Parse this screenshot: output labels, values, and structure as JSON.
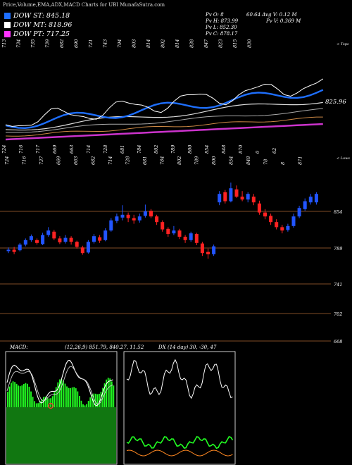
{
  "title": "Price,Volume,EMA,ADX,MACD Charts for UBI MunafaSutra.com",
  "legend": [
    {
      "label": "DOW ST: 845.18",
      "color": "#1e6fff"
    },
    {
      "label": "DOW MT: 818.96",
      "color": "#ffffff"
    },
    {
      "label": "DOW PT: 717.25",
      "color": "#ff33ff"
    }
  ],
  "ohlc": {
    "open": "Pv  O: 8",
    "open_right": "60.64  Avg V: 0.12  M",
    "high": "Pv  H: 873.99",
    "high_right": "Pv  V: 0.369 M",
    "low": "Pv  L: 852.30",
    "close": "Pv  C: 878.17"
  },
  "macd_header": "MACD:",
  "macd_values": "(12,26,9) 851.79, 840.27, 11.52",
  "adx_header": "DX",
  "adx_values": "(14 day) 30, -30, 47",
  "top_label": "< Tops",
  "low_label": "< Lows",
  "current_price_label": "825.96",
  "chart_data": [
    {
      "type": "line",
      "name": "price-ema-overview",
      "top_labels": [
        "713",
        "734",
        "735",
        "739",
        "682",
        "690",
        "721",
        "743",
        "794",
        "803",
        "814",
        "802",
        "814",
        "838",
        "847",
        "823",
        "815",
        "830"
      ],
      "bottom_labels": [
        "724",
        "716",
        "717",
        "669",
        "663",
        "714",
        "728",
        "681",
        "784",
        "802",
        "789",
        "800",
        "854",
        "848",
        "870",
        "0",
        "62"
      ],
      "current_price": 825.96
    },
    {
      "type": "candlestick",
      "name": "price-candles",
      "price_levels": [
        854,
        789,
        741,
        702,
        668
      ],
      "top_labels": [
        "724",
        "716",
        "737",
        "669",
        "663",
        "682",
        "714",
        "728",
        "681",
        "784",
        "802",
        "789",
        "800",
        "854",
        "848",
        "78",
        "8",
        "871"
      ],
      "candles": [
        {
          "o": 784,
          "c": 786,
          "h": 790,
          "l": 780,
          "up": true
        },
        {
          "o": 786,
          "c": 782,
          "h": 791,
          "l": 778,
          "up": false
        },
        {
          "o": 785,
          "c": 795,
          "h": 798,
          "l": 783,
          "up": true
        },
        {
          "o": 795,
          "c": 803,
          "h": 806,
          "l": 792,
          "up": true
        },
        {
          "o": 803,
          "c": 810,
          "h": 813,
          "l": 800,
          "up": true
        },
        {
          "o": 803,
          "c": 798,
          "h": 806,
          "l": 795,
          "up": false
        },
        {
          "o": 796,
          "c": 812,
          "h": 816,
          "l": 794,
          "up": true
        },
        {
          "o": 812,
          "c": 820,
          "h": 826,
          "l": 809,
          "up": true
        },
        {
          "o": 818,
          "c": 806,
          "h": 821,
          "l": 803,
          "up": false
        },
        {
          "o": 806,
          "c": 799,
          "h": 810,
          "l": 796,
          "up": false
        },
        {
          "o": 800,
          "c": 807,
          "h": 812,
          "l": 797,
          "up": true
        },
        {
          "o": 807,
          "c": 800,
          "h": 810,
          "l": 795,
          "up": false
        },
        {
          "o": 800,
          "c": 791,
          "h": 802,
          "l": 788,
          "up": false
        },
        {
          "o": 790,
          "c": 780,
          "h": 793,
          "l": 777,
          "up": false
        },
        {
          "o": 781,
          "c": 800,
          "h": 803,
          "l": 779,
          "up": true
        },
        {
          "o": 800,
          "c": 810,
          "h": 814,
          "l": 797,
          "up": true
        },
        {
          "o": 808,
          "c": 802,
          "h": 812,
          "l": 798,
          "up": false
        },
        {
          "o": 803,
          "c": 820,
          "h": 824,
          "l": 801,
          "up": true
        },
        {
          "o": 820,
          "c": 838,
          "h": 842,
          "l": 818,
          "up": true
        },
        {
          "o": 837,
          "c": 845,
          "h": 850,
          "l": 833,
          "up": true
        },
        {
          "o": 843,
          "c": 848,
          "h": 865,
          "l": 838,
          "up": true
        },
        {
          "o": 848,
          "c": 842,
          "h": 852,
          "l": 835,
          "up": false
        },
        {
          "o": 842,
          "c": 838,
          "h": 848,
          "l": 832,
          "up": false
        },
        {
          "o": 838,
          "c": 845,
          "h": 850,
          "l": 834,
          "up": true
        },
        {
          "o": 846,
          "c": 854,
          "h": 866,
          "l": 843,
          "up": true
        },
        {
          "o": 855,
          "c": 845,
          "h": 858,
          "l": 842,
          "up": false
        },
        {
          "o": 845,
          "c": 835,
          "h": 848,
          "l": 830,
          "up": false
        },
        {
          "o": 835,
          "c": 822,
          "h": 838,
          "l": 818,
          "up": false
        },
        {
          "o": 823,
          "c": 814,
          "h": 826,
          "l": 809,
          "up": false
        },
        {
          "o": 815,
          "c": 820,
          "h": 828,
          "l": 812,
          "up": true
        },
        {
          "o": 820,
          "c": 809,
          "h": 823,
          "l": 805,
          "up": false
        },
        {
          "o": 809,
          "c": 803,
          "h": 812,
          "l": 798,
          "up": false
        },
        {
          "o": 803,
          "c": 815,
          "h": 818,
          "l": 800,
          "up": true
        },
        {
          "o": 814,
          "c": 798,
          "h": 816,
          "l": 794,
          "up": false
        },
        {
          "o": 797,
          "c": 780,
          "h": 800,
          "l": 775,
          "up": false
        },
        {
          "o": 782,
          "c": 778,
          "h": 788,
          "l": 770,
          "up": false
        },
        {
          "o": 778,
          "c": 792,
          "h": 795,
          "l": 775,
          "up": true
        },
        {
          "o": 870,
          "c": 885,
          "h": 890,
          "l": 865,
          "up": true
        },
        {
          "o": 888,
          "c": 872,
          "h": 892,
          "l": 868,
          "up": false
        },
        {
          "o": 872,
          "c": 895,
          "h": 905,
          "l": 870,
          "up": true
        },
        {
          "o": 893,
          "c": 880,
          "h": 900,
          "l": 878,
          "up": false
        },
        {
          "o": 880,
          "c": 875,
          "h": 890,
          "l": 872,
          "up": false
        },
        {
          "o": 875,
          "c": 885,
          "h": 888,
          "l": 870,
          "up": true
        },
        {
          "o": 880,
          "c": 870,
          "h": 885,
          "l": 865,
          "up": false
        },
        {
          "o": 868,
          "c": 852,
          "h": 873,
          "l": 848,
          "up": false
        },
        {
          "o": 852,
          "c": 845,
          "h": 858,
          "l": 840,
          "up": false
        },
        {
          "o": 846,
          "c": 835,
          "h": 850,
          "l": 830,
          "up": false
        },
        {
          "o": 835,
          "c": 826,
          "h": 840,
          "l": 822,
          "up": false
        },
        {
          "o": 826,
          "c": 820,
          "h": 830,
          "l": 815,
          "up": false
        },
        {
          "o": 821,
          "c": 828,
          "h": 832,
          "l": 818,
          "up": true
        },
        {
          "o": 828,
          "c": 845,
          "h": 850,
          "l": 825,
          "up": true
        },
        {
          "o": 845,
          "c": 860,
          "h": 864,
          "l": 842,
          "up": true
        },
        {
          "o": 858,
          "c": 872,
          "h": 877,
          "l": 855,
          "up": true
        },
        {
          "o": 870,
          "c": 880,
          "h": 885,
          "l": 866,
          "up": true
        },
        {
          "o": 870,
          "c": 885,
          "h": 888,
          "l": 866,
          "up": true
        }
      ]
    },
    {
      "type": "bar",
      "name": "macd-histogram"
    },
    {
      "type": "line",
      "name": "adx"
    }
  ]
}
